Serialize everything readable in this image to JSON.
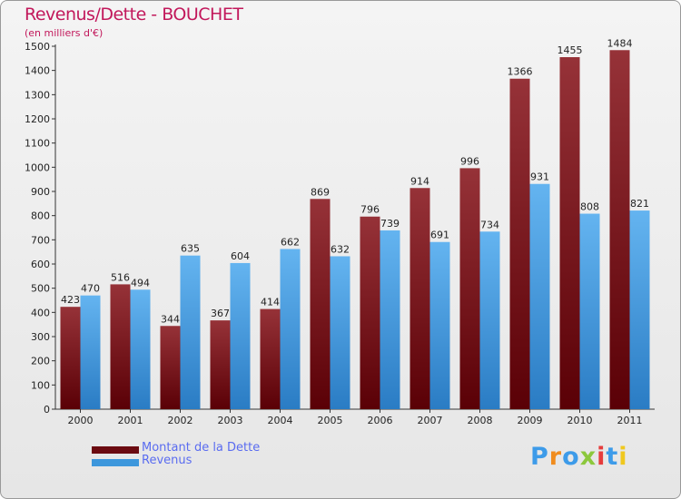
{
  "header": {
    "title": "Revenus/Dette - BOUCHET",
    "subtitle": "(en milliers d'€)"
  },
  "legend": {
    "items": [
      {
        "label": "Montant de la Dette",
        "color": "#6b0a10"
      },
      {
        "label": "Revenus",
        "color": "#3d97dc"
      }
    ]
  },
  "branding": {
    "logo_text": "Proxiti",
    "logo_colors": [
      "#3d9be9",
      "#f08c1e",
      "#3d9be9",
      "#8cc83c",
      "#e63c3c",
      "#3d9be9",
      "#f0c81e"
    ]
  },
  "colors": {
    "dette_top": "#963238",
    "dette_bottom": "#5a0006",
    "revenus_top": "#64b4f0",
    "revenus_bottom": "#2a7cc4",
    "axis": "#333333",
    "grid": "#cfcfcf"
  },
  "chart_data": {
    "type": "bar",
    "title": "Revenus/Dette - BOUCHET",
    "ylabel": "(en milliers d'€)",
    "xlabel": "",
    "categories": [
      "2000",
      "2001",
      "2002",
      "2003",
      "2004",
      "2005",
      "2006",
      "2007",
      "2008",
      "2009",
      "2010",
      "2011"
    ],
    "series": [
      {
        "name": "Montant de la Dette",
        "values": [
          423,
          516,
          344,
          367,
          414,
          869,
          796,
          914,
          996,
          1366,
          1455,
          1484
        ]
      },
      {
        "name": "Revenus",
        "values": [
          470,
          494,
          635,
          604,
          662,
          632,
          739,
          691,
          734,
          931,
          808,
          821
        ]
      }
    ],
    "ylim": [
      0,
      1500
    ],
    "yticks": [
      0,
      100,
      200,
      300,
      400,
      500,
      600,
      700,
      800,
      900,
      1000,
      1100,
      1200,
      1300,
      1400,
      1500
    ],
    "grid": false,
    "legend_position": "bottom-left"
  }
}
